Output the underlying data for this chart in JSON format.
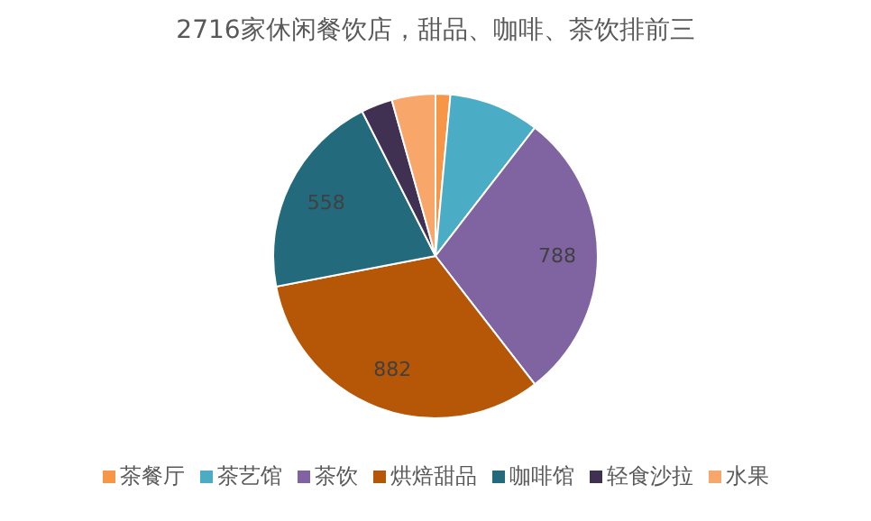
{
  "chart_data": {
    "type": "pie",
    "title": "2716家休闲餐饮店，甜品、咖啡、茶饮排前三",
    "categories": [
      "茶餐厅",
      "茶艺馆",
      "茶饮",
      "烘焙甜品",
      "咖啡馆",
      "轻食沙拉",
      "水果"
    ],
    "values": [
      40,
      245,
      788,
      882,
      558,
      85,
      118
    ],
    "value_labels": [
      null,
      null,
      "788",
      "882",
      "558",
      null,
      null
    ],
    "colors": [
      "#f79646",
      "#4bacc6",
      "#8064a2",
      "#b65708",
      "#236b7c",
      "#403152",
      "#f9a66a"
    ],
    "legend": "bottom"
  }
}
